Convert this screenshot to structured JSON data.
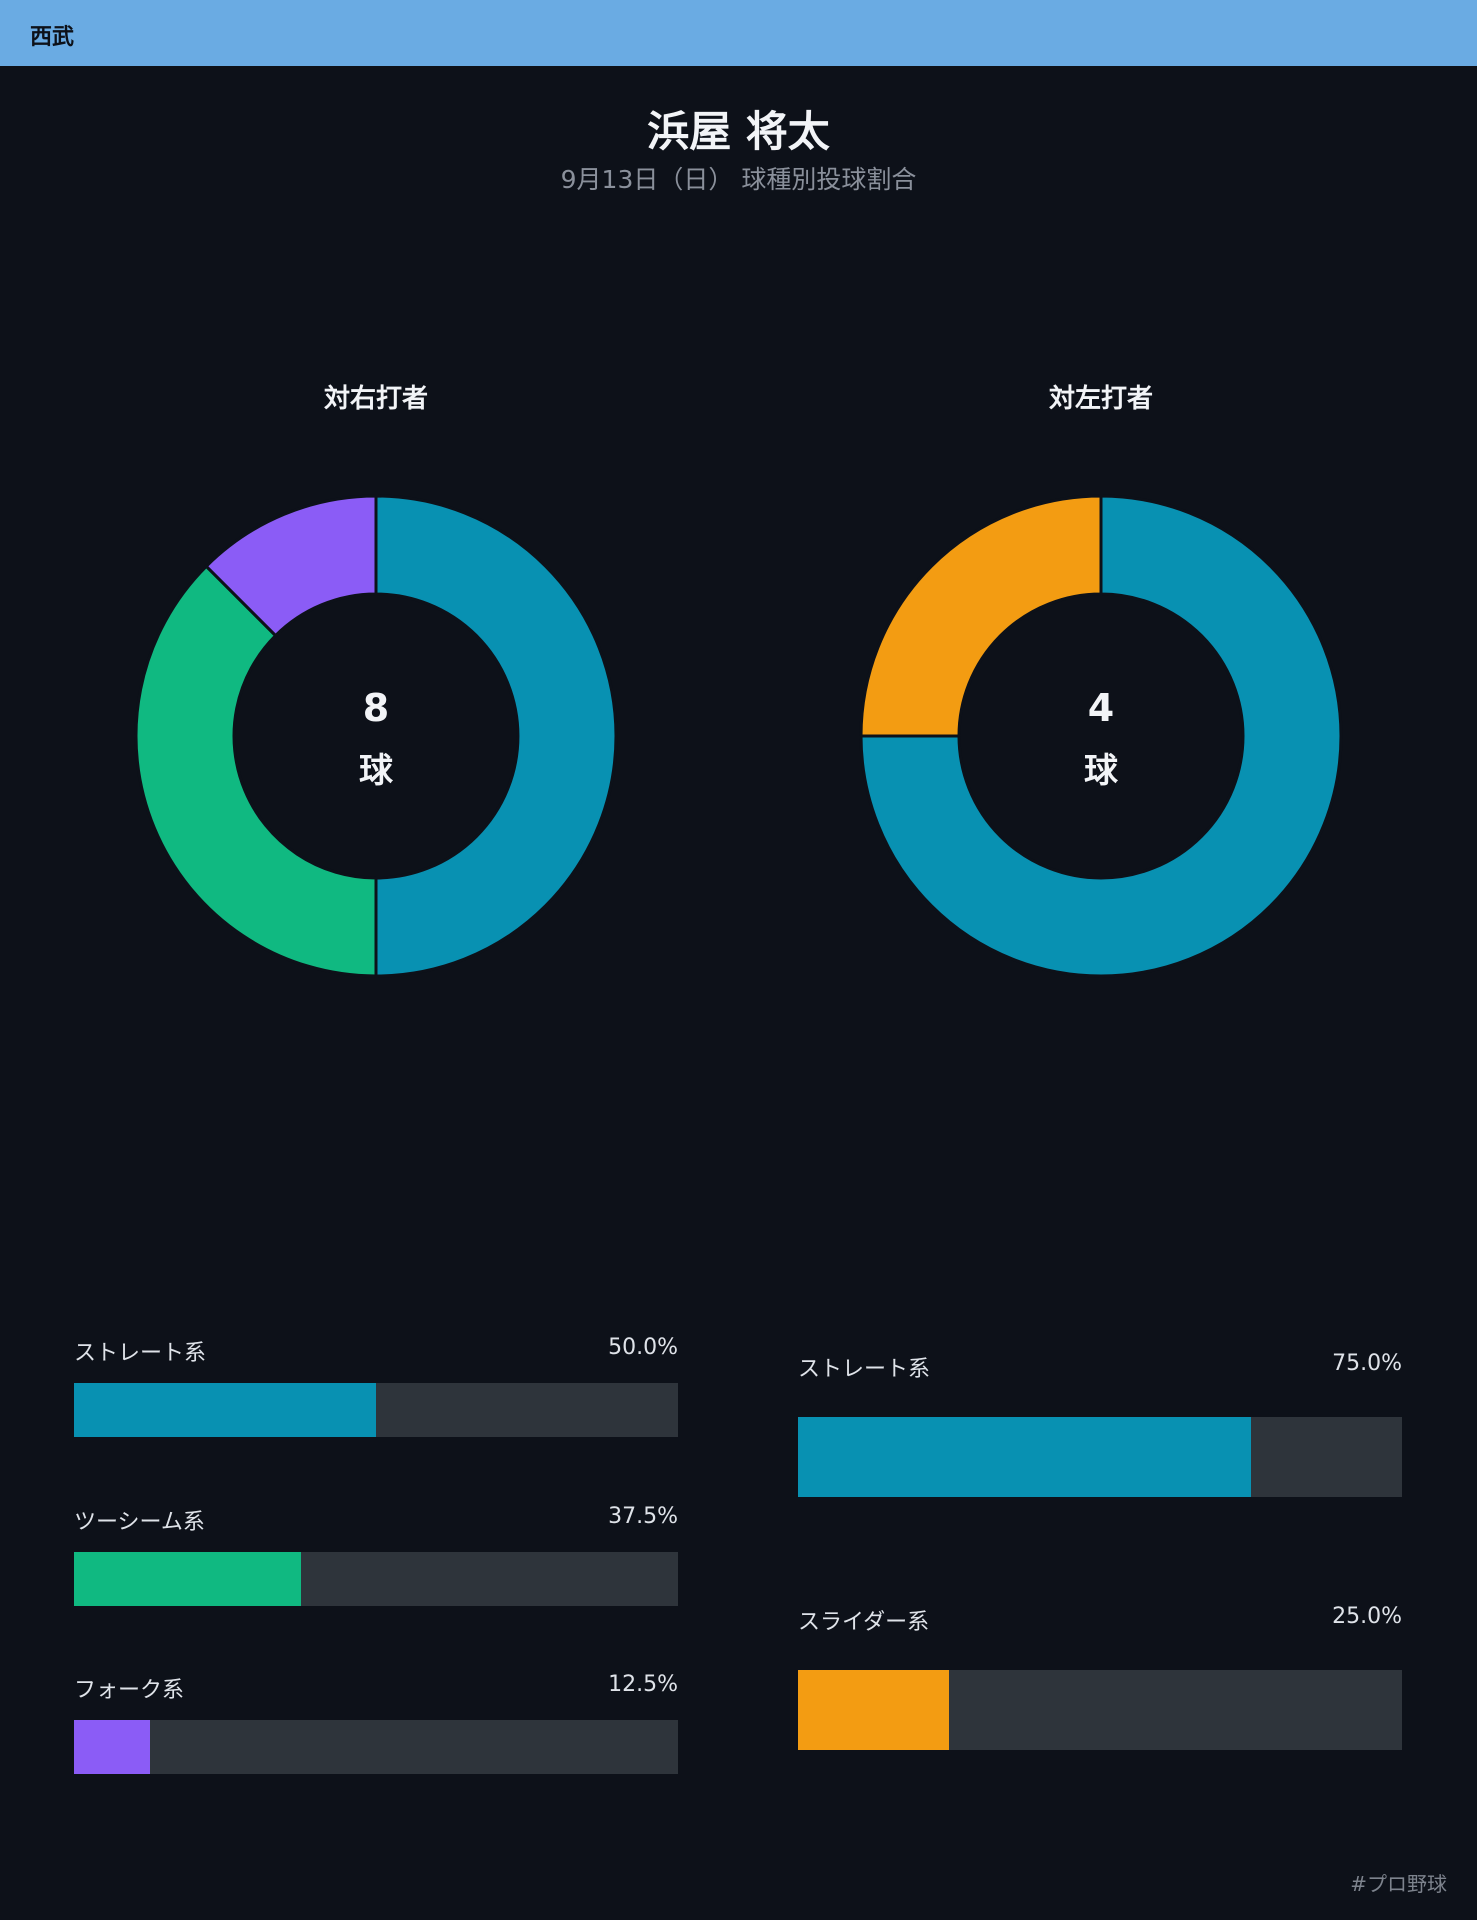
{
  "header": {
    "team": "西武"
  },
  "title": "浜屋 将太",
  "subtitle": "9月13日（日） 球種別投球割合",
  "colors": {
    "straight": "#0891b2",
    "twoseam": "#10b981",
    "fork": "#8b5cf6",
    "slider": "#f39c12",
    "track": "#2e343b"
  },
  "chart_data": [
    {
      "type": "pie",
      "title": "対右打者",
      "center_value": "8",
      "center_unit": "球",
      "slices": [
        {
          "name": "ストレート系",
          "value": 50.0,
          "percent_label": "50.0%",
          "color": "#0891b2"
        },
        {
          "name": "ツーシーム系",
          "value": 37.5,
          "percent_label": "37.5%",
          "color": "#10b981"
        },
        {
          "name": "フォーク系",
          "value": 12.5,
          "percent_label": "12.5%",
          "color": "#8b5cf6"
        }
      ]
    },
    {
      "type": "pie",
      "title": "対左打者",
      "center_value": "4",
      "center_unit": "球",
      "slices": [
        {
          "name": "ストレート系",
          "value": 75.0,
          "percent_label": "75.0%",
          "color": "#0891b2"
        },
        {
          "name": "スライダー系",
          "value": 25.0,
          "percent_label": "25.0%",
          "color": "#f39c12"
        }
      ]
    }
  ],
  "footer": {
    "hashtag": "#プロ野球"
  }
}
